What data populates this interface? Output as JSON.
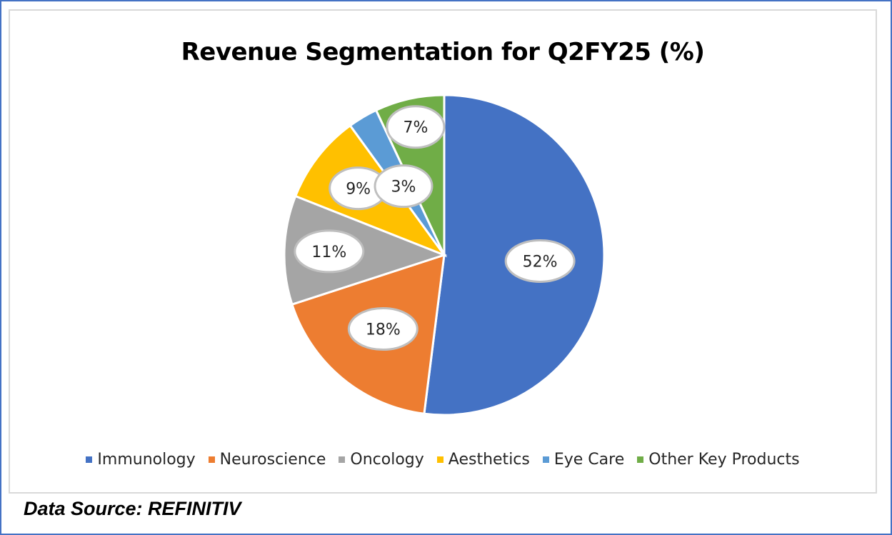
{
  "chart_data": {
    "type": "pie",
    "title": "Revenue Segmentation for Q2FY25 (%)",
    "categories": [
      "Immunology",
      "Neuroscience",
      "Oncology",
      "Aesthetics",
      "Eye Care",
      "Other Key Products"
    ],
    "values": [
      52,
      18,
      11,
      9,
      3,
      7
    ],
    "labels": [
      "52%",
      "18%",
      "11%",
      "9%",
      "3%",
      "7%"
    ],
    "colors": [
      "#4472c4",
      "#ed7d31",
      "#a5a5a5",
      "#ffc000",
      "#5b9bd5",
      "#70ad47"
    ],
    "legend_position": "bottom",
    "start_angle": "12 o'clock, clockwise"
  },
  "footer": {
    "source": "Data Source: REFINITIV"
  }
}
